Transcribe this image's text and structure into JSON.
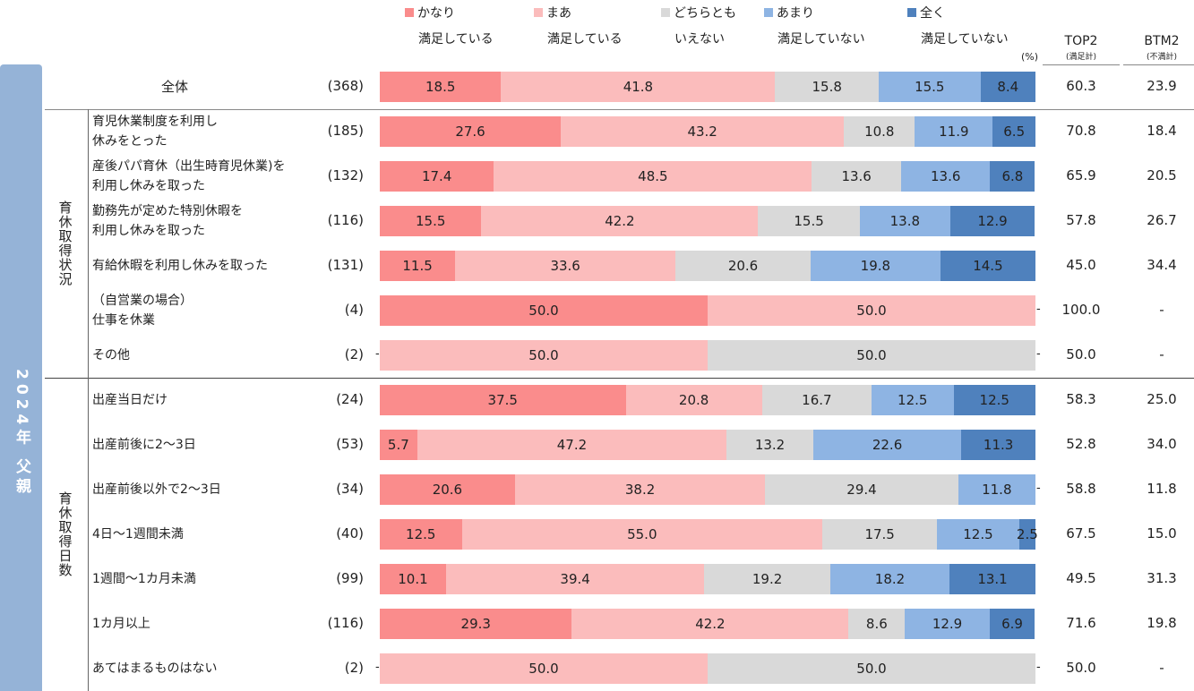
{
  "chart_data": {
    "type": "bar",
    "orientation": "horizontal-stacked-100",
    "unit_label": "(%)",
    "side_label": "2024年 父親",
    "legend": [
      {
        "top": "かなり",
        "bottom": "満足している",
        "color": "#fa8c8c"
      },
      {
        "top": "まあ",
        "bottom": "満足している",
        "color": "#fbbcbc"
      },
      {
        "top": "どちらとも",
        "bottom": "いえない",
        "color": "#d9d9d9"
      },
      {
        "top": "あまり",
        "bottom": "満足していない",
        "color": "#8eb4e3"
      },
      {
        "top": "全く",
        "bottom": "満足していない",
        "color": "#4f81bd"
      }
    ],
    "summary_headers": [
      {
        "main": "TOP2",
        "sub": "(満足計)"
      },
      {
        "main": "BTM2",
        "sub": "(不満計)"
      }
    ],
    "groups": [
      {
        "label": "育休取得状況",
        "rows": [
          1,
          6
        ]
      },
      {
        "label": "育休取得日数",
        "rows": [
          7,
          13
        ]
      }
    ],
    "rows": [
      {
        "label": "全体",
        "n": "(368)",
        "values": [
          18.5,
          41.8,
          15.8,
          15.5,
          8.4
        ],
        "top2": "60.3",
        "btm2": "23.9"
      },
      {
        "label": "育児休業制度を利用し\n休みをとった",
        "n": "(185)",
        "values": [
          27.6,
          43.2,
          10.8,
          11.9,
          6.5
        ],
        "top2": "70.8",
        "btm2": "18.4"
      },
      {
        "label": "産後パパ育休（出生時育児休業)を\n利用し休みを取った",
        "n": "(132)",
        "values": [
          17.4,
          48.5,
          13.6,
          13.6,
          6.8
        ],
        "top2": "65.9",
        "btm2": "20.5"
      },
      {
        "label": "勤務先が定めた特別休暇を\n利用し休みを取った",
        "n": "(116)",
        "values": [
          15.5,
          42.2,
          15.5,
          13.8,
          12.9
        ],
        "top2": "57.8",
        "btm2": "26.7"
      },
      {
        "label": "有給休暇を利用し休みを取った",
        "n": "(131)",
        "values": [
          11.5,
          33.6,
          20.6,
          19.8,
          14.5
        ],
        "top2": "45.0",
        "btm2": "34.4"
      },
      {
        "label": "（自営業の場合）\n仕事を休業",
        "n": "(4)",
        "values": [
          50.0,
          50.0,
          0,
          0,
          0
        ],
        "top2": "100.0",
        "btm2": "-"
      },
      {
        "label": "その他",
        "n": "(2)",
        "values": [
          0,
          50.0,
          50.0,
          0,
          0
        ],
        "top2": "50.0",
        "btm2": "-"
      },
      {
        "label": "出産当日だけ",
        "n": "(24)",
        "values": [
          37.5,
          20.8,
          16.7,
          12.5,
          12.5
        ],
        "top2": "58.3",
        "btm2": "25.0"
      },
      {
        "label": "出産前後に2～3日",
        "n": "(53)",
        "values": [
          5.7,
          47.2,
          13.2,
          22.6,
          11.3
        ],
        "top2": "52.8",
        "btm2": "34.0"
      },
      {
        "label": "出産前後以外で2～3日",
        "n": "(34)",
        "values": [
          20.6,
          38.2,
          29.4,
          11.8,
          0
        ],
        "top2": "58.8",
        "btm2": "11.8"
      },
      {
        "label": "4日～1週間未満",
        "n": "(40)",
        "values": [
          12.5,
          55.0,
          17.5,
          12.5,
          2.5
        ],
        "top2": "67.5",
        "btm2": "15.0"
      },
      {
        "label": "1週間～1カ月未満",
        "n": "(99)",
        "values": [
          10.1,
          39.4,
          19.2,
          18.2,
          13.1
        ],
        "top2": "49.5",
        "btm2": "31.3"
      },
      {
        "label": "1カ月以上",
        "n": "(116)",
        "values": [
          29.3,
          42.2,
          8.6,
          12.9,
          6.9
        ],
        "top2": "71.6",
        "btm2": "19.8"
      },
      {
        "label": "あてはまるものはない",
        "n": "(2)",
        "values": [
          0,
          50.0,
          50.0,
          0,
          0
        ],
        "top2": "50.0",
        "btm2": "-"
      }
    ]
  }
}
